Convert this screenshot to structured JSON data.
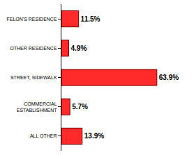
{
  "chart_data": {
    "type": "bar",
    "orientation": "horizontal",
    "categories": [
      "FELON'S RESIDENCE",
      "OTHER RESIDENCE",
      "STREET, SIDEWALK",
      "COMMERCIAL ESTABLISHMENT",
      "ALL OTHER"
    ],
    "values": [
      11.5,
      4.9,
      63.9,
      5.7,
      13.9
    ],
    "value_labels": [
      "11.5%",
      "4.9%",
      "63.9%",
      "5.7%",
      "13.9%"
    ],
    "color": "#ff2a2a",
    "data_labels": true,
    "tick_labels": "y",
    "grid": false
  }
}
